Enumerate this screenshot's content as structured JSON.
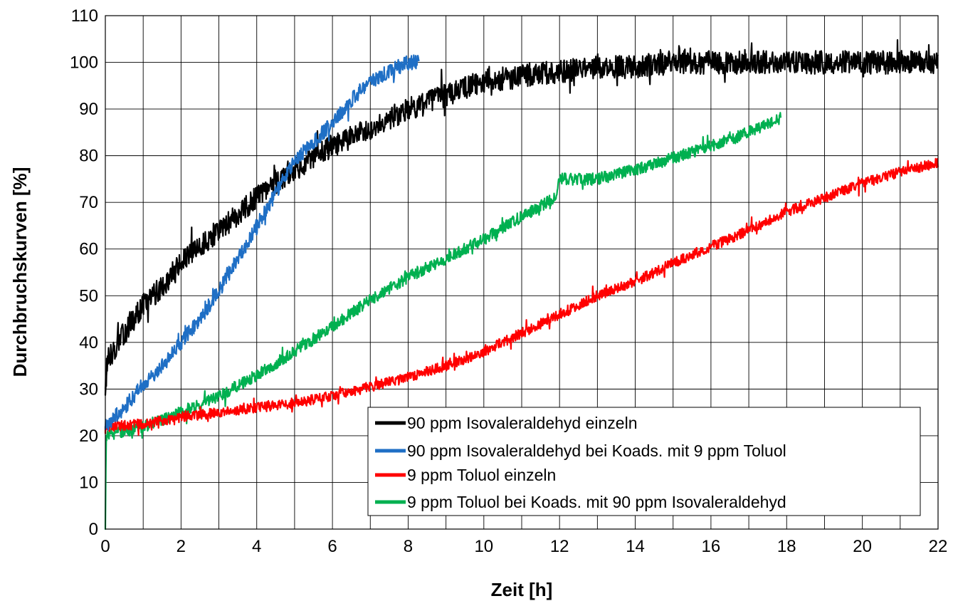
{
  "chart_data": {
    "type": "line",
    "xlabel": "Zeit [h]",
    "ylabel": "Durchbruchskurven [%]",
    "xlim": [
      0,
      22
    ],
    "ylim": [
      0,
      110
    ],
    "x_ticks": [
      "0",
      "2",
      "4",
      "6",
      "8",
      "10",
      "12",
      "14",
      "16",
      "18",
      "20",
      "22"
    ],
    "y_ticks": [
      "0",
      "10",
      "20",
      "30",
      "40",
      "50",
      "60",
      "70",
      "80",
      "90",
      "100",
      "110"
    ],
    "grid": true,
    "legend_position": "bottom-right",
    "series": [
      {
        "name": "90 ppm Isovaleraldehyd einzeln",
        "color": "#000000",
        "noise": 2.5,
        "points": [
          [
            0,
            30
          ],
          [
            0.05,
            36
          ],
          [
            0.5,
            42
          ],
          [
            1,
            48
          ],
          [
            1.5,
            52
          ],
          [
            2,
            57
          ],
          [
            3,
            64
          ],
          [
            4,
            71
          ],
          [
            5,
            77
          ],
          [
            6,
            82
          ],
          [
            7,
            86
          ],
          [
            8,
            90
          ],
          [
            9,
            93
          ],
          [
            10,
            96
          ],
          [
            11,
            97
          ],
          [
            12,
            98
          ],
          [
            13,
            99
          ],
          [
            14,
            99
          ],
          [
            15,
            100
          ],
          [
            16,
            100
          ],
          [
            17,
            100
          ],
          [
            18,
            100
          ],
          [
            19,
            100
          ],
          [
            20,
            100
          ],
          [
            21,
            100
          ],
          [
            22,
            100
          ]
        ]
      },
      {
        "name": "90 ppm Isovaleraldehyd bei Koads. mit 9 ppm Toluol",
        "color": "#1f6fc5",
        "noise": 1.6,
        "points": [
          [
            0,
            22
          ],
          [
            0.5,
            26
          ],
          [
            1,
            31
          ],
          [
            1.5,
            35
          ],
          [
            2,
            40
          ],
          [
            2.5,
            45
          ],
          [
            3,
            51
          ],
          [
            3.5,
            58
          ],
          [
            4,
            65
          ],
          [
            4.5,
            72
          ],
          [
            5,
            79
          ],
          [
            5.5,
            83
          ],
          [
            6,
            87
          ],
          [
            6.5,
            92
          ],
          [
            7,
            96
          ],
          [
            7.5,
            98
          ],
          [
            8,
            100
          ],
          [
            8.3,
            100
          ]
        ]
      },
      {
        "name": "9 ppm Toluol einzeln",
        "color": "#ff0000",
        "noise": 1.1,
        "points": [
          [
            0,
            22
          ],
          [
            1,
            22.5
          ],
          [
            2,
            24
          ],
          [
            3,
            25
          ],
          [
            4,
            26
          ],
          [
            5,
            27
          ],
          [
            6,
            28.5
          ],
          [
            7,
            30.5
          ],
          [
            8,
            32.5
          ],
          [
            9,
            35
          ],
          [
            10,
            38
          ],
          [
            11,
            42
          ],
          [
            12,
            46
          ],
          [
            13,
            50
          ],
          [
            14,
            53
          ],
          [
            15,
            57
          ],
          [
            16,
            60.5
          ],
          [
            17,
            64
          ],
          [
            18,
            68
          ],
          [
            19,
            71
          ],
          [
            20,
            74
          ],
          [
            21,
            76.5
          ],
          [
            22,
            78.5
          ]
        ]
      },
      {
        "name": "9 ppm Toluol bei Koads. mit 90 ppm Isovaleraldehyd",
        "color": "#00b050",
        "noise": 1.3,
        "points": [
          [
            0,
            0
          ],
          [
            0.02,
            20
          ],
          [
            1,
            22
          ],
          [
            2,
            25
          ],
          [
            3,
            28.5
          ],
          [
            4,
            33
          ],
          [
            5,
            38
          ],
          [
            6,
            43.5
          ],
          [
            7,
            49
          ],
          [
            8,
            54
          ],
          [
            9,
            58
          ],
          [
            10,
            62
          ],
          [
            11,
            67
          ],
          [
            11.9,
            71
          ],
          [
            12,
            75
          ],
          [
            13,
            75
          ],
          [
            14,
            77
          ],
          [
            15,
            79.5
          ],
          [
            16,
            82
          ],
          [
            17,
            85
          ],
          [
            17.85,
            88
          ]
        ]
      }
    ]
  }
}
